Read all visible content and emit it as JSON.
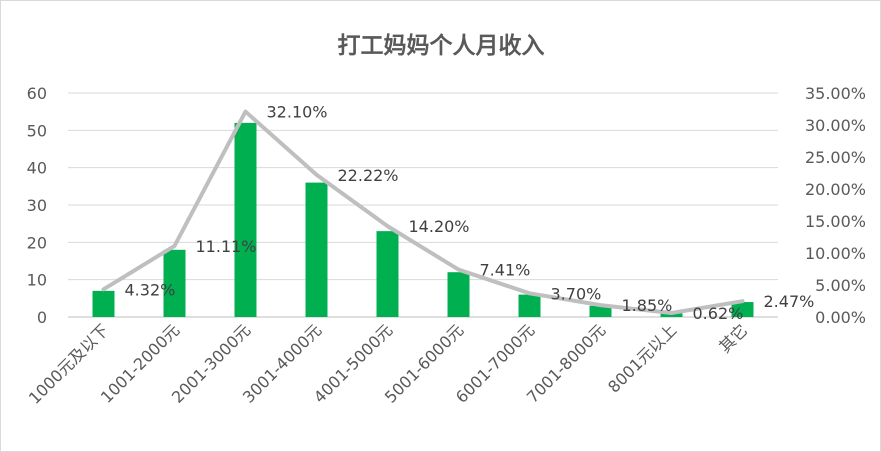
{
  "chart_data": {
    "type": "bar",
    "title": "打工妈妈个人月收入",
    "categories": [
      "1000元及以下",
      "1001-2000元",
      "2001-3000元",
      "3001-4000元",
      "4001-5000元",
      "5001-6000元",
      "6001-7000元",
      "7001-8000元",
      "8001元以上",
      "其它"
    ],
    "series": [
      {
        "type": "bar",
        "axis": "left",
        "color": "#00b050",
        "values": [
          7,
          18,
          52,
          36,
          23,
          12,
          6,
          3,
          1,
          4
        ]
      },
      {
        "type": "line",
        "axis": "right",
        "color": "#bfbfbf",
        "values": [
          4.32,
          11.11,
          32.1,
          22.22,
          14.2,
          7.41,
          3.7,
          1.85,
          0.62,
          2.47
        ],
        "labels": [
          "4.32%",
          "11.11%",
          "32.10%",
          "22.22%",
          "14.20%",
          "7.41%",
          "3.70%",
          "1.85%",
          "0.62%",
          "2.47%"
        ]
      }
    ],
    "y_left": {
      "ylim": [
        0,
        60
      ],
      "ticks": [
        "0",
        "10",
        "20",
        "30",
        "40",
        "50",
        "60"
      ]
    },
    "y_right": {
      "ylim": [
        0,
        35
      ],
      "ticks": [
        "0.00%",
        "5.00%",
        "10.00%",
        "15.00%",
        "20.00%",
        "25.00%",
        "30.00%",
        "35.00%"
      ]
    },
    "grid": true,
    "legend": "none"
  }
}
